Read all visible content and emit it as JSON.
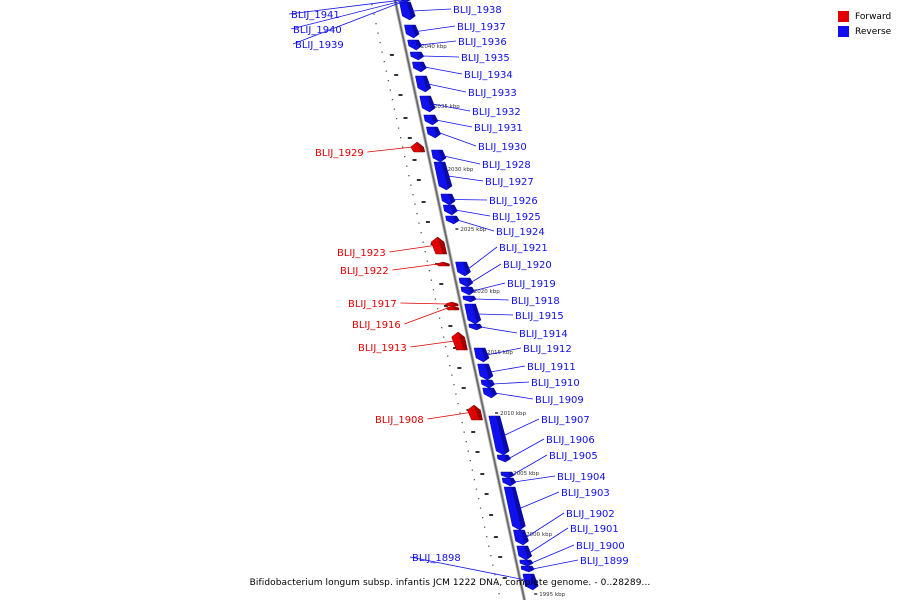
{
  "colors": {
    "forward": "#e00000",
    "reverse": "#1010ee",
    "axis": "#666666"
  },
  "legend": {
    "forward_label": "Forward",
    "reverse_label": "Reverse"
  },
  "caption": "Bifidobacterium longum subsp. infantis JCM 1222 DNA, complete genome. - 0..28289...",
  "scale_labels": [
    "2040 kbp",
    "2035 kbp",
    "2030 kbp",
    "2025 kbp",
    "2020 kbp",
    "2015 kbp",
    "2010 kbp",
    "2005 kbp",
    "2000 kbp",
    "1995 kbp"
  ],
  "genes": [
    {
      "name": "BLIJ_1941",
      "strand": "reverse"
    },
    {
      "name": "BLIJ_1940",
      "strand": "reverse"
    },
    {
      "name": "BLIJ_1939",
      "strand": "reverse"
    },
    {
      "name": "BLIJ_1938",
      "strand": "reverse"
    },
    {
      "name": "BLIJ_1937",
      "strand": "reverse"
    },
    {
      "name": "BLIJ_1936",
      "strand": "reverse"
    },
    {
      "name": "BLIJ_1935",
      "strand": "reverse"
    },
    {
      "name": "BLIJ_1934",
      "strand": "reverse"
    },
    {
      "name": "BLIJ_1933",
      "strand": "reverse"
    },
    {
      "name": "BLIJ_1932",
      "strand": "reverse"
    },
    {
      "name": "BLIJ_1931",
      "strand": "reverse"
    },
    {
      "name": "BLIJ_1930",
      "strand": "reverse"
    },
    {
      "name": "BLIJ_1929",
      "strand": "forward"
    },
    {
      "name": "BLIJ_1928",
      "strand": "reverse"
    },
    {
      "name": "BLIJ_1927",
      "strand": "reverse"
    },
    {
      "name": "BLIJ_1926",
      "strand": "reverse"
    },
    {
      "name": "BLIJ_1925",
      "strand": "reverse"
    },
    {
      "name": "BLIJ_1924",
      "strand": "reverse"
    },
    {
      "name": "BLIJ_1923",
      "strand": "forward"
    },
    {
      "name": "BLIJ_1922",
      "strand": "forward"
    },
    {
      "name": "BLIJ_1921",
      "strand": "reverse"
    },
    {
      "name": "BLIJ_1920",
      "strand": "reverse"
    },
    {
      "name": "BLIJ_1919",
      "strand": "reverse"
    },
    {
      "name": "BLIJ_1918",
      "strand": "reverse"
    },
    {
      "name": "BLIJ_1917",
      "strand": "forward"
    },
    {
      "name": "BLIJ_1916",
      "strand": "forward"
    },
    {
      "name": "BLIJ_1915",
      "strand": "reverse"
    },
    {
      "name": "BLIJ_1914",
      "strand": "reverse"
    },
    {
      "name": "BLIJ_1913",
      "strand": "forward"
    },
    {
      "name": "BLIJ_1912",
      "strand": "reverse"
    },
    {
      "name": "BLIJ_1911",
      "strand": "reverse"
    },
    {
      "name": "BLIJ_1910",
      "strand": "reverse"
    },
    {
      "name": "BLIJ_1909",
      "strand": "reverse"
    },
    {
      "name": "BLIJ_1908",
      "strand": "forward"
    },
    {
      "name": "BLIJ_1907",
      "strand": "reverse"
    },
    {
      "name": "BLIJ_1906",
      "strand": "reverse"
    },
    {
      "name": "BLIJ_1905",
      "strand": "reverse"
    },
    {
      "name": "BLIJ_1904",
      "strand": "reverse"
    },
    {
      "name": "BLIJ_1903",
      "strand": "reverse"
    },
    {
      "name": "BLIJ_1902",
      "strand": "reverse"
    },
    {
      "name": "BLIJ_1901",
      "strand": "reverse"
    },
    {
      "name": "BLIJ_1900",
      "strand": "reverse"
    },
    {
      "name": "BLIJ_1899",
      "strand": "reverse"
    },
    {
      "name": "BLIJ_1898",
      "strand": "reverse"
    }
  ]
}
